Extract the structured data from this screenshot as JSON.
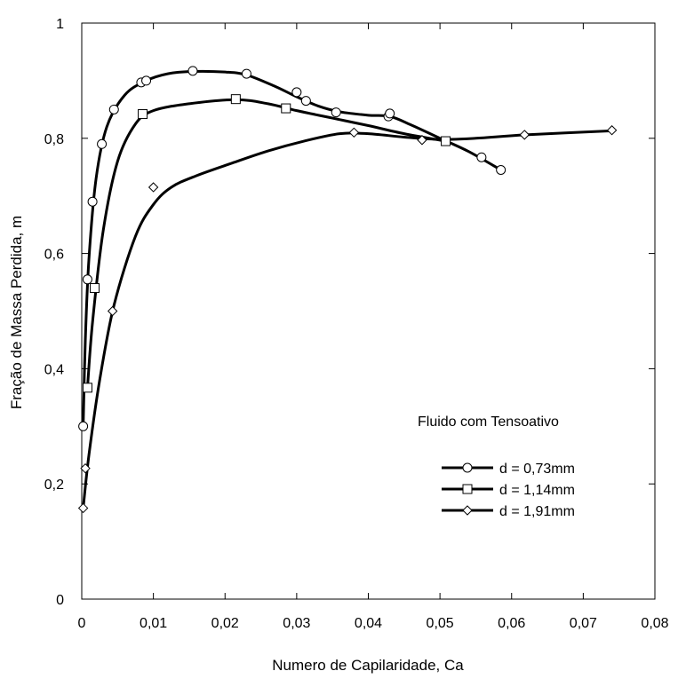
{
  "chart_data": {
    "type": "line",
    "title": "",
    "xlabel": "Numero de Capilaridade, Ca",
    "ylabel": "Fração de Massa Perdida, m",
    "xlim": [
      0,
      0.08
    ],
    "ylim": [
      0,
      1
    ],
    "x_ticks": [
      "0",
      "0,01",
      "0,02",
      "0,03",
      "0,04",
      "0,05",
      "0,06",
      "0,07",
      "0,08"
    ],
    "y_ticks": [
      "0",
      "0,2",
      "0,4",
      "0,6",
      "0,8",
      "1"
    ],
    "grid": false,
    "legend_title": "Fluido com Tensoativo",
    "legend_position": "right",
    "series": [
      {
        "name": "d = 0,73mm",
        "marker": "circle",
        "points": [
          [
            0.0002,
            0.3
          ],
          [
            0.0008,
            0.555
          ],
          [
            0.0015,
            0.69
          ],
          [
            0.0028,
            0.79
          ],
          [
            0.0045,
            0.85
          ],
          [
            0.0083,
            0.897
          ],
          [
            0.009,
            0.9
          ],
          [
            0.0155,
            0.917
          ],
          [
            0.023,
            0.912
          ],
          [
            0.03,
            0.88
          ],
          [
            0.0313,
            0.865
          ],
          [
            0.0355,
            0.845
          ],
          [
            0.0428,
            0.838
          ],
          [
            0.043,
            0.843
          ],
          [
            0.0558,
            0.767
          ],
          [
            0.0585,
            0.745
          ]
        ],
        "curve": [
          [
            0.0002,
            0.3
          ],
          [
            0.0005,
            0.45
          ],
          [
            0.001,
            0.59
          ],
          [
            0.002,
            0.73
          ],
          [
            0.0035,
            0.82
          ],
          [
            0.006,
            0.875
          ],
          [
            0.009,
            0.9
          ],
          [
            0.012,
            0.912
          ],
          [
            0.0155,
            0.916
          ],
          [
            0.02,
            0.915
          ],
          [
            0.023,
            0.91
          ],
          [
            0.027,
            0.89
          ],
          [
            0.03,
            0.872
          ],
          [
            0.033,
            0.856
          ],
          [
            0.036,
            0.846
          ],
          [
            0.04,
            0.84
          ],
          [
            0.043,
            0.838
          ],
          [
            0.046,
            0.823
          ],
          [
            0.05,
            0.8
          ],
          [
            0.054,
            0.777
          ],
          [
            0.0585,
            0.745
          ]
        ]
      },
      {
        "name": "d = 1,14mm",
        "marker": "square",
        "points": [
          [
            0.0008,
            0.367
          ],
          [
            0.0018,
            0.54
          ],
          [
            0.0085,
            0.842
          ],
          [
            0.0215,
            0.868
          ],
          [
            0.0285,
            0.852
          ],
          [
            0.0508,
            0.795
          ]
        ],
        "curve": [
          [
            0.0008,
            0.367
          ],
          [
            0.0015,
            0.48
          ],
          [
            0.003,
            0.64
          ],
          [
            0.005,
            0.76
          ],
          [
            0.0075,
            0.825
          ],
          [
            0.01,
            0.848
          ],
          [
            0.015,
            0.86
          ],
          [
            0.0215,
            0.867
          ],
          [
            0.026,
            0.86
          ],
          [
            0.03,
            0.848
          ],
          [
            0.035,
            0.835
          ],
          [
            0.04,
            0.822
          ],
          [
            0.045,
            0.808
          ],
          [
            0.0508,
            0.795
          ]
        ]
      },
      {
        "name": "d = 1,91mm",
        "marker": "diamond",
        "points": [
          [
            0.0002,
            0.158
          ],
          [
            0.0005,
            0.227
          ],
          [
            0.0043,
            0.5
          ],
          [
            0.01,
            0.715
          ],
          [
            0.038,
            0.81
          ],
          [
            0.0475,
            0.797
          ],
          [
            0.0618,
            0.806
          ],
          [
            0.074,
            0.814
          ]
        ],
        "curve": [
          [
            0.0002,
            0.158
          ],
          [
            0.001,
            0.25
          ],
          [
            0.0025,
            0.38
          ],
          [
            0.0045,
            0.51
          ],
          [
            0.0075,
            0.63
          ],
          [
            0.01,
            0.685
          ],
          [
            0.0125,
            0.715
          ],
          [
            0.016,
            0.735
          ],
          [
            0.021,
            0.757
          ],
          [
            0.026,
            0.778
          ],
          [
            0.031,
            0.795
          ],
          [
            0.036,
            0.808
          ],
          [
            0.04,
            0.808
          ],
          [
            0.045,
            0.802
          ],
          [
            0.05,
            0.798
          ],
          [
            0.055,
            0.8
          ],
          [
            0.062,
            0.806
          ],
          [
            0.074,
            0.813
          ]
        ]
      }
    ]
  }
}
